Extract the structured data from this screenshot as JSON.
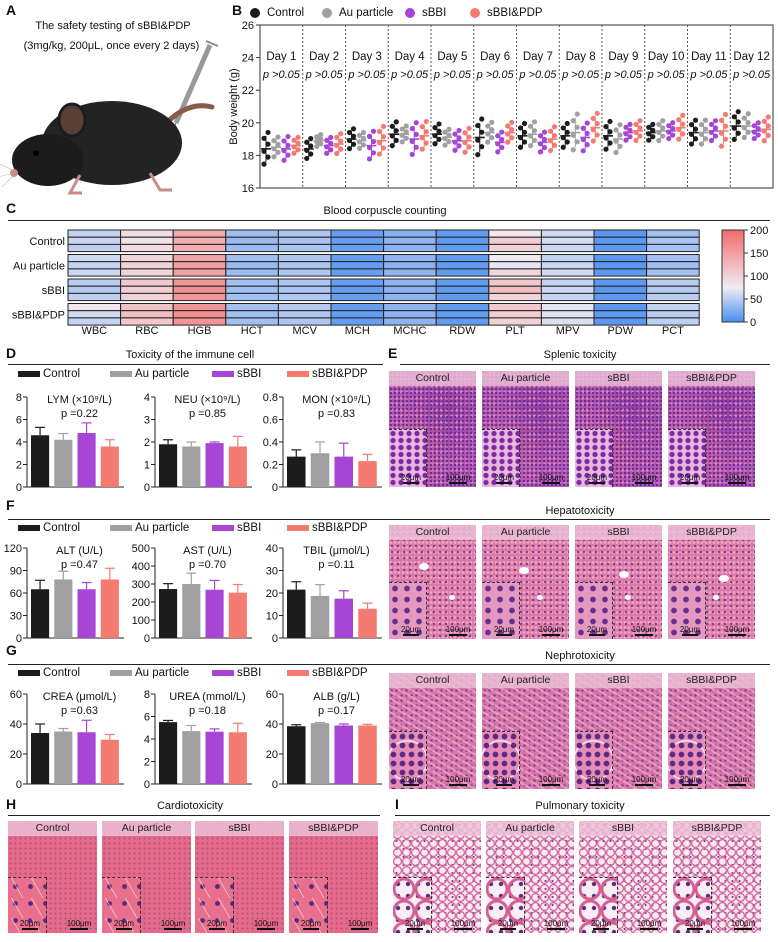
{
  "groups": [
    "Control",
    "Au particle",
    "sBBI",
    "sBBI&PDP"
  ],
  "colors": {
    "Control": "#1c1c1c",
    "Au particle": "#a0a0a2",
    "sBBI": "#a645d6",
    "sBBI&PDP": "#f57a72",
    "heat_low": "#4a8ef0",
    "heat_mid": "#f1ecf2",
    "heat_high": "#f26b6b"
  },
  "panels": {
    "A": {
      "label": "A",
      "title_line1": "The safety testing of sBBI&PDP",
      "title_line2": "(3mg/kg, 200μL, once every 2 days)"
    },
    "B": {
      "label": "B"
    },
    "C": {
      "label": "C",
      "title": "Blood corpuscle counting"
    },
    "D": {
      "label": "D",
      "title": "Toxicity of the immune cell"
    },
    "E": {
      "label": "E",
      "title": "Splenic toxicity"
    },
    "F": {
      "label": "F",
      "title": "Hepatotoxicity"
    },
    "G": {
      "label": "G",
      "title": "Nephrotoxicity"
    },
    "H": {
      "label": "H",
      "title": "Cardiotoxicity"
    },
    "I": {
      "label": "I",
      "title": "Pulmonary toxicity"
    }
  },
  "histology": {
    "scale_small": "20μm",
    "scale_large": "100μm",
    "labels": [
      "Control",
      "Au particle",
      "sBBI",
      "sBBI&PDP"
    ]
  },
  "chart_data": [
    {
      "type": "scatter",
      "title": "",
      "ylabel": "Body weight (g)",
      "ylim": [
        16,
        26
      ],
      "yticks": [
        16,
        18,
        20,
        22,
        24,
        26
      ],
      "categories": [
        "Day 1",
        "Day 2",
        "Day 3",
        "Day 4",
        "Day 5",
        "Day 6",
        "Day 7",
        "Day 8",
        "Day 9",
        "Day 10",
        "Day 11",
        "Day 12"
      ],
      "p_labels": [
        "p >0.05",
        "p >0.05",
        "p >0.05",
        "p >0.05",
        "p >0.05",
        "p >0.05",
        "p >0.05",
        "p >0.05",
        "p >0.05",
        "p >0.05",
        "p >0.05",
        "p >0.05"
      ],
      "legend": [
        "Control",
        "Au particle",
        "sBBI",
        "sBBI&PDP"
      ],
      "series": [
        {
          "name": "Control",
          "mean": [
            18.4,
            18.4,
            19.0,
            19.3,
            19.3,
            19.1,
            19.2,
            19.2,
            19.2,
            19.4,
            19.4,
            19.8
          ],
          "sd": [
            0.8,
            0.5,
            0.5,
            0.6,
            0.5,
            0.9,
            0.6,
            0.6,
            0.7,
            0.4,
            0.6,
            0.7
          ]
        },
        {
          "name": "Au particle",
          "mean": [
            18.5,
            18.9,
            18.9,
            19.3,
            19.1,
            19.4,
            19.3,
            19.4,
            19.0,
            19.5,
            19.4,
            19.8
          ],
          "sd": [
            0.5,
            0.3,
            0.4,
            0.4,
            0.4,
            0.5,
            0.6,
            0.9,
            0.7,
            0.5,
            0.6,
            0.6
          ]
        },
        {
          "name": "sBBI",
          "mean": [
            18.4,
            18.6,
            18.6,
            19.0,
            18.9,
            18.8,
            18.8,
            19.1,
            19.4,
            19.5,
            19.5,
            19.5
          ],
          "sd": [
            0.6,
            0.4,
            0.7,
            0.8,
            0.5,
            0.5,
            0.5,
            0.7,
            0.4,
            0.4,
            0.5,
            0.4
          ]
        },
        {
          "name": "sBBI&PDP",
          "mean": [
            18.6,
            18.7,
            18.9,
            19.2,
            18.9,
            19.4,
            19.0,
            19.7,
            19.5,
            19.7,
            19.5,
            19.6
          ],
          "sd": [
            0.4,
            0.5,
            0.7,
            0.7,
            0.6,
            0.5,
            0.6,
            0.7,
            0.5,
            0.6,
            0.8,
            0.6
          ]
        }
      ]
    },
    {
      "type": "heatmap",
      "title": "Blood corpuscle counting",
      "columns": [
        "WBC",
        "RBC",
        "HGB",
        "HCT",
        "MCV",
        "MCH",
        "MCHC",
        "RDW",
        "PLT",
        "MPV",
        "PDW",
        "PCT"
      ],
      "row_groups": [
        "Control",
        "Au particle",
        "sBBI",
        "sBBI&PDP"
      ],
      "colorbar_ticks": [
        0,
        50,
        100,
        150,
        200
      ],
      "range": [
        0,
        200
      ],
      "values": [
        [
          [
            55,
            90,
            140,
            38,
            45,
            12,
            28,
            10,
            80,
            60,
            8,
            40
          ],
          [
            58,
            85,
            135,
            35,
            42,
            12,
            30,
            10,
            105,
            62,
            8,
            42
          ],
          [
            52,
            92,
            138,
            36,
            44,
            13,
            29,
            11,
            100,
            58,
            9,
            41
          ]
        ],
        [
          [
            60,
            95,
            145,
            38,
            46,
            12,
            30,
            10,
            75,
            55,
            8,
            40
          ],
          [
            55,
            100,
            150,
            36,
            44,
            12,
            29,
            11,
            70,
            58,
            8,
            38
          ],
          [
            58,
            98,
            148,
            37,
            45,
            13,
            31,
            10,
            95,
            60,
            9,
            40
          ]
        ],
        [
          [
            50,
            110,
            160,
            40,
            45,
            12,
            30,
            10,
            110,
            55,
            8,
            50
          ],
          [
            48,
            105,
            165,
            38,
            44,
            12,
            29,
            11,
            120,
            58,
            8,
            48
          ],
          [
            52,
            100,
            158,
            39,
            46,
            13,
            30,
            10,
            100,
            56,
            9,
            50
          ]
        ],
        [
          [
            80,
            115,
            160,
            40,
            48,
            12,
            30,
            10,
            110,
            70,
            8,
            55
          ],
          [
            60,
            120,
            165,
            38,
            46,
            12,
            29,
            11,
            105,
            68,
            9,
            50
          ],
          [
            55,
            110,
            160,
            39,
            45,
            13,
            30,
            10,
            100,
            65,
            8,
            52
          ]
        ]
      ]
    },
    {
      "type": "bar",
      "title": "LYM (×10⁹/L)",
      "p": "p =0.22",
      "categories": [
        "Control",
        "Au particle",
        "sBBI",
        "sBBI&PDP"
      ],
      "values": [
        4.6,
        4.2,
        4.8,
        3.6
      ],
      "errors": [
        0.7,
        0.55,
        0.9,
        0.6
      ],
      "ylim": [
        0,
        8
      ],
      "yticks": [
        0,
        2,
        4,
        6,
        8
      ]
    },
    {
      "type": "bar",
      "title": "NEU (×10⁹/L)",
      "p": "p =0.85",
      "categories": [
        "Control",
        "Au particle",
        "sBBI",
        "sBBI&PDP"
      ],
      "values": [
        1.9,
        1.8,
        1.95,
        1.8
      ],
      "errors": [
        0.2,
        0.2,
        0.05,
        0.45
      ],
      "ylim": [
        0,
        4
      ],
      "yticks": [
        0,
        1,
        2,
        3,
        4
      ]
    },
    {
      "type": "bar",
      "title": "MON (×10⁹/L)",
      "p": "p =0.83",
      "categories": [
        "Control",
        "Au particle",
        "sBBI",
        "sBBI&PDP"
      ],
      "values": [
        0.27,
        0.3,
        0.27,
        0.23
      ],
      "errors": [
        0.06,
        0.1,
        0.12,
        0.06
      ],
      "ylim": [
        0,
        0.8
      ],
      "yticks": [
        0,
        0.2,
        0.4,
        0.6,
        0.8
      ]
    },
    {
      "type": "bar",
      "title": "ALT (U/L)",
      "p": "p =0.47",
      "categories": [
        "Control",
        "Au particle",
        "sBBI",
        "sBBI&PDP"
      ],
      "values": [
        65,
        78,
        65,
        78
      ],
      "errors": [
        12,
        11,
        9,
        15
      ],
      "ylim": [
        0,
        120
      ],
      "yticks": [
        0,
        30,
        60,
        90,
        120
      ]
    },
    {
      "type": "bar",
      "title": "AST (U/L)",
      "p": "p =0.70",
      "categories": [
        "Control",
        "Au particle",
        "sBBI",
        "sBBI&PDP"
      ],
      "values": [
        272,
        300,
        268,
        252
      ],
      "errors": [
        30,
        60,
        52,
        45
      ],
      "ylim": [
        0,
        500
      ],
      "yticks": [
        0,
        100,
        200,
        300,
        400,
        500
      ]
    },
    {
      "type": "bar",
      "title": "TBIL (μmol/L)",
      "p": "p =0.11",
      "categories": [
        "Control",
        "Au particle",
        "sBBI",
        "sBBI&PDP"
      ],
      "values": [
        21.5,
        18.7,
        17.5,
        13
      ],
      "errors": [
        3.5,
        5,
        3.5,
        2.5
      ],
      "ylim": [
        0,
        40
      ],
      "yticks": [
        0,
        10,
        20,
        30,
        40
      ]
    },
    {
      "type": "bar",
      "title": "CREA (μmol/L)",
      "p": "p =0.63",
      "categories": [
        "Control",
        "Au particle",
        "sBBI",
        "sBBI&PDP"
      ],
      "values": [
        34,
        35,
        34.5,
        29.5
      ],
      "errors": [
        6,
        2,
        8,
        3.5
      ],
      "ylim": [
        0,
        60
      ],
      "yticks": [
        0,
        20,
        40,
        60
      ]
    },
    {
      "type": "bar",
      "title": "UREA (mmol/L)",
      "p": "p =0.18",
      "categories": [
        "Control",
        "Au particle",
        "sBBI",
        "sBBI&PDP"
      ],
      "values": [
        5.5,
        4.7,
        4.65,
        4.6
      ],
      "errors": [
        0.15,
        0.5,
        0.25,
        0.8
      ],
      "ylim": [
        0,
        8
      ],
      "yticks": [
        0,
        2,
        4,
        6,
        8
      ]
    },
    {
      "type": "bar",
      "title": "ALB (g/L)",
      "p": "p =0.17",
      "categories": [
        "Control",
        "Au particle",
        "sBBI",
        "sBBI&PDP"
      ],
      "values": [
        38.5,
        40.5,
        39,
        39
      ],
      "errors": [
        1,
        0.5,
        1,
        0.8
      ],
      "ylim": [
        0,
        60
      ],
      "yticks": [
        0,
        20,
        40,
        60
      ]
    }
  ]
}
